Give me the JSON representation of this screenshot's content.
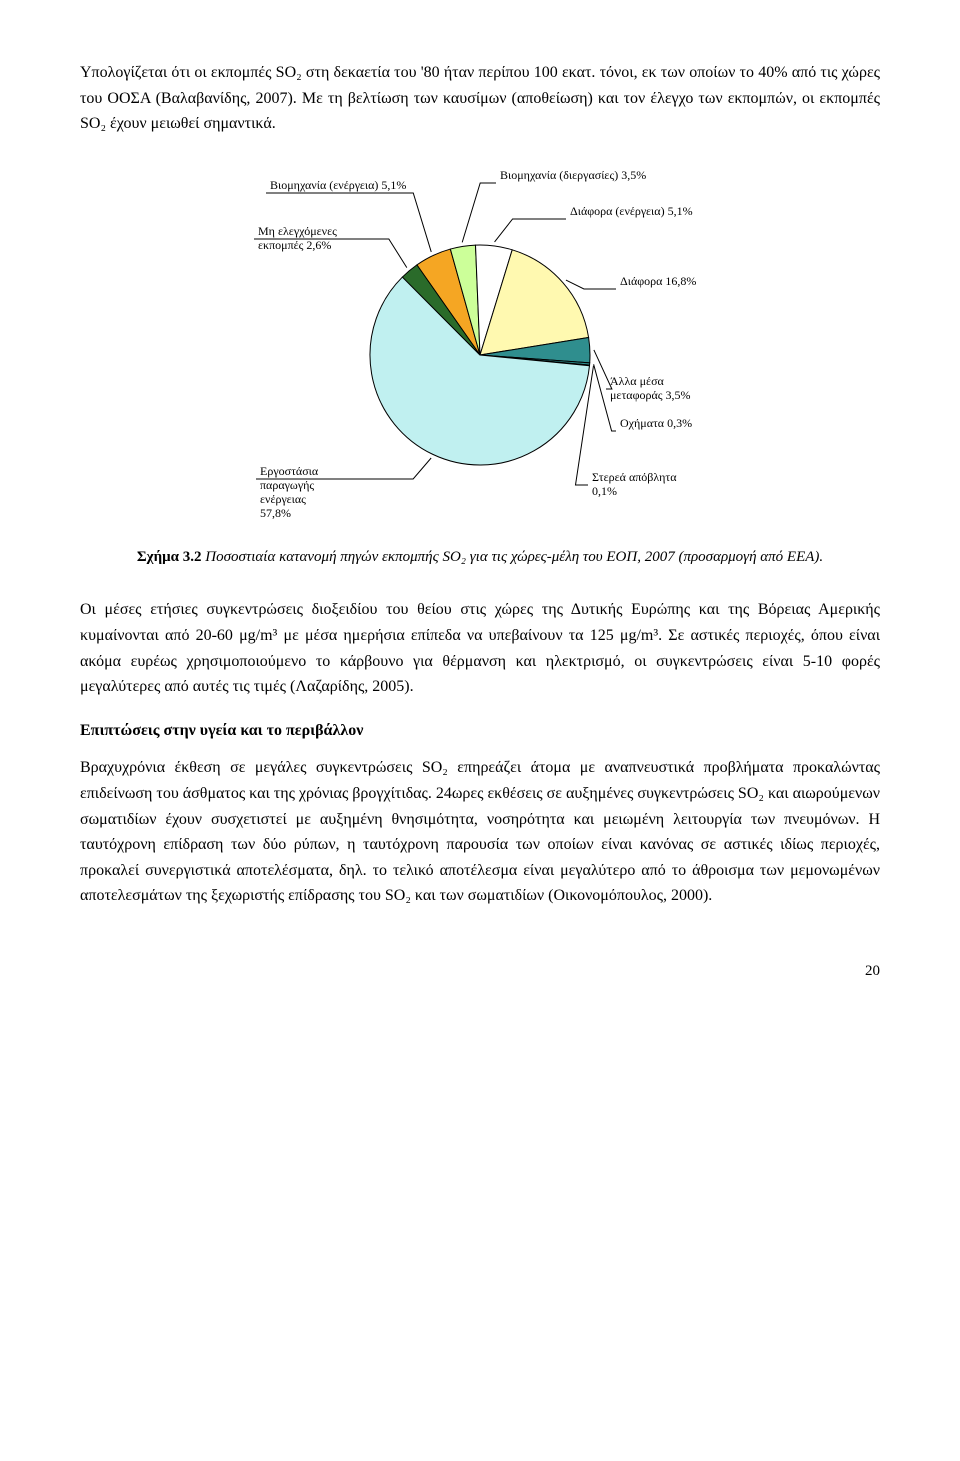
{
  "para1": "Υπολογίζεται ότι οι εκπομπές SO₂ στη δεκαετία του '80 ήταν περίπου 100 εκατ. τόνοι, εκ των οποίων το 40% από τις χώρες του ΟΟΣΑ (Βαλαβανίδης, 2007). Με τη βελτίωση των καυσίμων (αποθείωση) και τον έλεγχο των εκπομπών, οι εκπομπές SO₂ έχουν μειωθεί σημαντικά.",
  "chart": {
    "type": "pie",
    "background_color": "#ffffff",
    "label_fontsize": 12,
    "slices": [
      {
        "label": "Βιομηχανία (ενέργεια)",
        "pct_text": "5,1%",
        "value": 5.1,
        "color": "#f5a623",
        "border": "#000000"
      },
      {
        "label": "Βιομηχανία (διεργασίες)",
        "pct_text": "3,5%",
        "value": 3.5,
        "color": "#ccff99",
        "border": "#000000"
      },
      {
        "label": "Διάφορα (ενέργεια)",
        "pct_text": "5,1%",
        "value": 5.1,
        "color": "#ffffff",
        "border": "#000000"
      },
      {
        "label": "Διάφορα",
        "pct_text": "16,8%",
        "value": 16.8,
        "color": "#fff9b0",
        "border": "#000000"
      },
      {
        "label": "Άλλα μέσα μεταφοράς",
        "pct_text": "3,5%",
        "value": 3.5,
        "color": "#2f8e8e",
        "border": "#000000"
      },
      {
        "label": "Οχήματα",
        "pct_text": "0,3%",
        "value": 0.3,
        "color": "#2f8e8e",
        "border": "#000000"
      },
      {
        "label": "Στερεά απόβλητα",
        "pct_text": "0,1%",
        "value": 0.1,
        "color": "#2f8e8e",
        "border": "#000000"
      },
      {
        "label": "Εργοστάσια παραγωγής ενέργειας",
        "pct_text": "57,8%",
        "value": 57.8,
        "color": "#c0f0f0",
        "border": "#000000"
      },
      {
        "label": "Μη ελεγχόμενες εκπομπές",
        "pct_text": "2,6%",
        "value": 2.6,
        "color": "#2a6b2a",
        "border": "#000000"
      }
    ],
    "leader_color": "#000000",
    "stroke_width": 1
  },
  "caption_bold": "Σχήμα 3.2",
  "caption_rest": " Ποσοστιαία κατανομή πηγών εκπομπής SO₂ για τις χώρες-μέλη του ΕΟΠ, 2007 (προσαρμογή από ΕΕΑ).",
  "para2": "Οι μέσες ετήσιες συγκεντρώσεις διοξειδίου του θείου στις χώρες της Δυτικής Ευρώπης και της Βόρειας Αμερικής κυμαίνονται από 20-60 μg/m³ με μέσα ημερήσια επίπεδα να υπεβαίνουν τα 125 μg/m³. Σε αστικές περιοχές, όπου είναι ακόμα ευρέως χρησιμοποιούμενο το κάρβουνο για θέρμανση και ηλεκτρισμό, οι συγκεντρώσεις είναι 5-10 φορές μεγαλύτερες από αυτές τις τιμές (Λαζαρίδης, 2005).",
  "section_head": "Επιπτώσεις στην υγεία και το περιβάλλον",
  "para3": "Βραχυχρόνια έκθεση σε μεγάλες συγκεντρώσεις SO₂ επηρεάζει άτομα με αναπνευστικά προβλήματα  προκαλώντας επιδείνωση του άσθματος και της χρόνιας βρογχίτιδας. 24ωρες εκθέσεις σε αυξημένες συγκεντρώσεις SO₂ και αιωρούμενων σωματιδίων έχουν συσχετιστεί με αυξημένη θνησιμότητα, νοσηρότητα και μειωμένη λειτουργία των πνευμόνων. Η ταυτόχρονη επίδραση των δύο ρύπων, η ταυτόχρονη παρουσία των οποίων είναι κανόνας σε αστικές ιδίως περιοχές, προκαλεί συνεργιστικά αποτελέσματα, δηλ. το τελικό αποτέλεσμα είναι μεγαλύτερο από το άθροισμα των μεμονωμένων αποτελεσμάτων της ξεχωριστής επίδρασης του SO₂ και των σωματιδίων (Οικονομόπουλος, 2000).",
  "pagenum": "20"
}
